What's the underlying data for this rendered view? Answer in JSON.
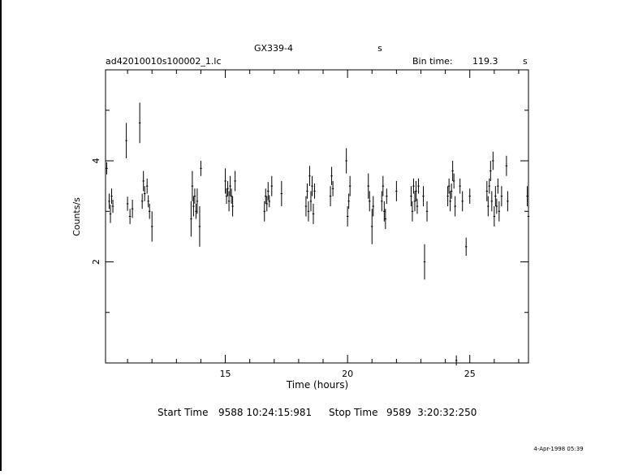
{
  "header": {
    "object_name": "GX339-4",
    "object_suffix": "s",
    "file_name": "ad42010010s100002_1.lc",
    "bin_time_label": "Bin time:",
    "bin_time_value": "119.3",
    "bin_time_unit": "s"
  },
  "footer": {
    "start_label": "Start Time",
    "start_value": "9588 10:24:15:981",
    "stop_label": "Stop Time",
    "stop_value": "9589  3:20:32:250",
    "date_stamp": "4-Apr-1998 05:39"
  },
  "chart_data": {
    "type": "scatter",
    "title": "GX339-4",
    "xlabel": "Time (hours)",
    "ylabel": "Counts/s",
    "xlim": [
      10.1,
      27.4
    ],
    "ylim": [
      0,
      5.8
    ],
    "x_ticks": [
      15,
      20,
      25
    ],
    "y_ticks": [
      2,
      4
    ],
    "grid": false,
    "series": [
      {
        "error_bars": true,
        "points": [
          {
            "x": 10.15,
            "y": 3.85,
            "err": 0.12
          },
          {
            "x": 10.25,
            "y": 3.2,
            "err": 0.15
          },
          {
            "x": 10.3,
            "y": 2.95,
            "err": 0.18
          },
          {
            "x": 10.35,
            "y": 3.3,
            "err": 0.15
          },
          {
            "x": 10.4,
            "y": 3.1,
            "err": 0.13
          },
          {
            "x": 10.95,
            "y": 4.4,
            "err": 0.35
          },
          {
            "x": 11.0,
            "y": 3.15,
            "err": 0.14
          },
          {
            "x": 11.1,
            "y": 2.9,
            "err": 0.15
          },
          {
            "x": 11.2,
            "y": 3.05,
            "err": 0.18
          },
          {
            "x": 11.5,
            "y": 4.75,
            "err": 0.4
          },
          {
            "x": 11.6,
            "y": 3.2,
            "err": 0.15
          },
          {
            "x": 11.65,
            "y": 3.6,
            "err": 0.2
          },
          {
            "x": 11.7,
            "y": 3.35,
            "err": 0.15
          },
          {
            "x": 11.8,
            "y": 3.5,
            "err": 0.15
          },
          {
            "x": 11.85,
            "y": 3.2,
            "err": 0.12
          },
          {
            "x": 11.9,
            "y": 3.0,
            "err": 0.15
          },
          {
            "x": 12.0,
            "y": 2.7,
            "err": 0.3
          },
          {
            "x": 13.6,
            "y": 2.85,
            "err": 0.35
          },
          {
            "x": 13.65,
            "y": 3.5,
            "err": 0.3
          },
          {
            "x": 13.7,
            "y": 3.1,
            "err": 0.2
          },
          {
            "x": 13.75,
            "y": 3.3,
            "err": 0.15
          },
          {
            "x": 13.8,
            "y": 3.0,
            "err": 0.15
          },
          {
            "x": 13.85,
            "y": 3.2,
            "err": 0.25
          },
          {
            "x": 13.95,
            "y": 2.7,
            "err": 0.4
          },
          {
            "x": 14.0,
            "y": 3.85,
            "err": 0.15
          },
          {
            "x": 15.0,
            "y": 3.6,
            "err": 0.25
          },
          {
            "x": 15.05,
            "y": 3.3,
            "err": 0.15
          },
          {
            "x": 15.1,
            "y": 3.45,
            "err": 0.15
          },
          {
            "x": 15.15,
            "y": 3.2,
            "err": 0.2
          },
          {
            "x": 15.2,
            "y": 3.5,
            "err": 0.2
          },
          {
            "x": 15.25,
            "y": 3.3,
            "err": 0.15
          },
          {
            "x": 15.3,
            "y": 3.1,
            "err": 0.2
          },
          {
            "x": 15.4,
            "y": 3.6,
            "err": 0.2
          },
          {
            "x": 16.6,
            "y": 3.0,
            "err": 0.2
          },
          {
            "x": 16.65,
            "y": 3.3,
            "err": 0.15
          },
          {
            "x": 16.7,
            "y": 3.15,
            "err": 0.15
          },
          {
            "x": 16.75,
            "y": 3.4,
            "err": 0.18
          },
          {
            "x": 16.8,
            "y": 3.2,
            "err": 0.12
          },
          {
            "x": 16.9,
            "y": 3.5,
            "err": 0.2
          },
          {
            "x": 17.3,
            "y": 3.35,
            "err": 0.25
          },
          {
            "x": 18.3,
            "y": 3.1,
            "err": 0.2
          },
          {
            "x": 18.35,
            "y": 3.4,
            "err": 0.15
          },
          {
            "x": 18.4,
            "y": 3.0,
            "err": 0.2
          },
          {
            "x": 18.45,
            "y": 3.7,
            "err": 0.2
          },
          {
            "x": 18.5,
            "y": 3.2,
            "err": 0.2
          },
          {
            "x": 18.55,
            "y": 3.5,
            "err": 0.2
          },
          {
            "x": 18.6,
            "y": 2.95,
            "err": 0.2
          },
          {
            "x": 18.65,
            "y": 3.4,
            "err": 0.15
          },
          {
            "x": 19.3,
            "y": 3.3,
            "err": 0.2
          },
          {
            "x": 19.35,
            "y": 3.7,
            "err": 0.18
          },
          {
            "x": 19.4,
            "y": 3.45,
            "err": 0.15
          },
          {
            "x": 19.95,
            "y": 4.0,
            "err": 0.25
          },
          {
            "x": 20.0,
            "y": 2.9,
            "err": 0.2
          },
          {
            "x": 20.05,
            "y": 3.2,
            "err": 0.15
          },
          {
            "x": 20.1,
            "y": 3.5,
            "err": 0.2
          },
          {
            "x": 20.85,
            "y": 3.5,
            "err": 0.25
          },
          {
            "x": 20.9,
            "y": 3.2,
            "err": 0.2
          },
          {
            "x": 21.0,
            "y": 2.7,
            "err": 0.35
          },
          {
            "x": 21.05,
            "y": 3.1,
            "err": 0.2
          },
          {
            "x": 21.4,
            "y": 3.2,
            "err": 0.2
          },
          {
            "x": 21.45,
            "y": 3.5,
            "err": 0.2
          },
          {
            "x": 21.5,
            "y": 3.0,
            "err": 0.2
          },
          {
            "x": 21.55,
            "y": 2.85,
            "err": 0.2
          },
          {
            "x": 21.6,
            "y": 3.3,
            "err": 0.15
          },
          {
            "x": 22.0,
            "y": 3.4,
            "err": 0.2
          },
          {
            "x": 22.6,
            "y": 3.3,
            "err": 0.2
          },
          {
            "x": 22.65,
            "y": 3.0,
            "err": 0.2
          },
          {
            "x": 22.7,
            "y": 3.5,
            "err": 0.15
          },
          {
            "x": 22.75,
            "y": 3.2,
            "err": 0.2
          },
          {
            "x": 22.8,
            "y": 3.4,
            "err": 0.2
          },
          {
            "x": 22.85,
            "y": 3.1,
            "err": 0.15
          },
          {
            "x": 22.9,
            "y": 3.5,
            "err": 0.15
          },
          {
            "x": 23.1,
            "y": 3.3,
            "err": 0.2
          },
          {
            "x": 23.15,
            "y": 2.0,
            "err": 0.35
          },
          {
            "x": 23.25,
            "y": 3.0,
            "err": 0.2
          },
          {
            "x": 24.1,
            "y": 3.3,
            "err": 0.2
          },
          {
            "x": 24.15,
            "y": 3.5,
            "err": 0.15
          },
          {
            "x": 24.2,
            "y": 3.2,
            "err": 0.2
          },
          {
            "x": 24.25,
            "y": 3.4,
            "err": 0.15
          },
          {
            "x": 24.3,
            "y": 3.8,
            "err": 0.2
          },
          {
            "x": 24.35,
            "y": 3.6,
            "err": 0.15
          },
          {
            "x": 24.4,
            "y": 3.1,
            "err": 0.2
          },
          {
            "x": 24.45,
            "y": 0.05,
            "err": 0.1
          },
          {
            "x": 24.6,
            "y": 3.5,
            "err": 0.15
          },
          {
            "x": 24.7,
            "y": 3.2,
            "err": 0.2
          },
          {
            "x": 24.85,
            "y": 2.3,
            "err": 0.18
          },
          {
            "x": 25.0,
            "y": 3.3,
            "err": 0.15
          },
          {
            "x": 25.7,
            "y": 3.4,
            "err": 0.2
          },
          {
            "x": 25.75,
            "y": 3.1,
            "err": 0.2
          },
          {
            "x": 25.8,
            "y": 3.5,
            "err": 0.15
          },
          {
            "x": 25.85,
            "y": 3.8,
            "err": 0.2
          },
          {
            "x": 25.9,
            "y": 3.2,
            "err": 0.2
          },
          {
            "x": 25.95,
            "y": 4.0,
            "err": 0.18
          },
          {
            "x": 26.0,
            "y": 2.9,
            "err": 0.2
          },
          {
            "x": 26.05,
            "y": 3.3,
            "err": 0.2
          },
          {
            "x": 26.1,
            "y": 3.1,
            "err": 0.15
          },
          {
            "x": 26.15,
            "y": 3.5,
            "err": 0.15
          },
          {
            "x": 26.2,
            "y": 3.0,
            "err": 0.2
          },
          {
            "x": 26.3,
            "y": 3.3,
            "err": 0.2
          },
          {
            "x": 26.5,
            "y": 3.9,
            "err": 0.2
          },
          {
            "x": 26.55,
            "y": 3.2,
            "err": 0.2
          },
          {
            "x": 27.35,
            "y": 3.3,
            "err": 0.2
          },
          {
            "x": 27.4,
            "y": 2.9,
            "err": 0.15
          }
        ]
      }
    ]
  }
}
